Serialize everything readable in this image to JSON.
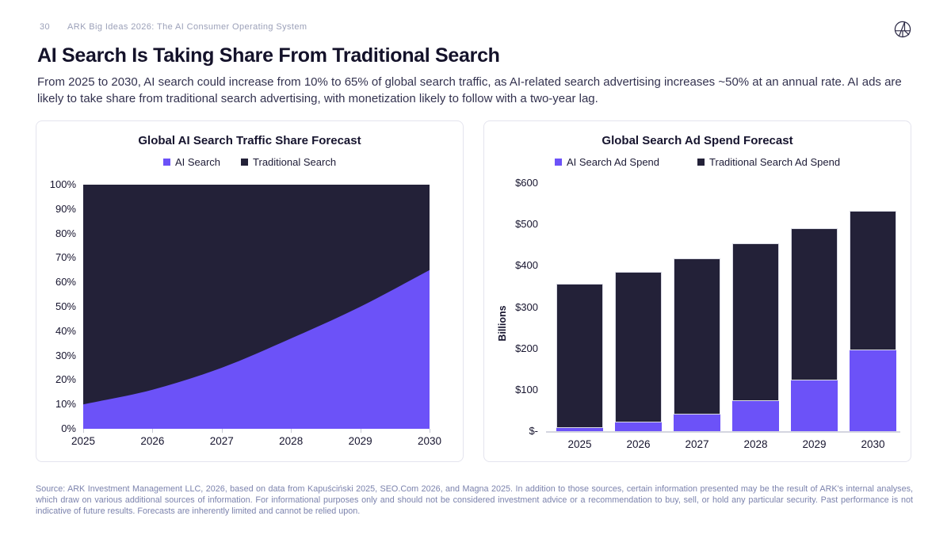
{
  "page": {
    "number": "30",
    "header": "ARK Big Ideas 2026: The AI Consumer Operating System",
    "title": "AI Search Is Taking Share From Traditional Search",
    "subtitle": "From 2025 to 2030, AI search could increase from 10% to 65% of global search traffic, as AI-related search advertising increases ~50% at an annual rate. AI ads are likely to take share from traditional search advertising, with monetization likely to follow with a two-year lag.",
    "footer": "Source: ARK Investment Management LLC, 2026, based on data from Kapuściński 2025, SEO.Com 2026, and Magna 2025. In addition to those sources, certain information presented may be the result of ARK's internal analyses, which draw on various additional sources of information. For informational purposes only and should not be considered investment advice or a recommendation to buy, sell, or hold any particular security. Past performance is not indicative of future results. Forecasts are inherently limited and cannot be relied upon.",
    "logo_name": "ark-logo"
  },
  "colors": {
    "ai": "#6C52F8",
    "traditional": "#232138",
    "title_text": "#14122a",
    "muted_text": "#7c83ad",
    "header_text": "#9ba0b8",
    "card_border": "#e4e4ee",
    "axis_line": "#d4d5e0"
  },
  "chart_data": [
    {
      "type": "area",
      "title": "Global AI Search Traffic Share Forecast",
      "categories": [
        "2025",
        "2026",
        "2027",
        "2028",
        "2029",
        "2030"
      ],
      "series": [
        {
          "name": "AI Search",
          "values": [
            10,
            16,
            25,
            37,
            50,
            65
          ],
          "color": "#6C52F8"
        },
        {
          "name": "Traditional Search",
          "values": [
            90,
            84,
            75,
            63,
            50,
            35
          ],
          "color": "#232138"
        }
      ],
      "stacked": true,
      "percent": true,
      "yticks": [
        "100%",
        "90%",
        "80%",
        "70%",
        "60%",
        "50%",
        "40%",
        "30%",
        "20%",
        "10%",
        "0%"
      ],
      "ylim": [
        0,
        100
      ],
      "xlabel": "",
      "ylabel": "",
      "legend_position": "top",
      "grid": false
    },
    {
      "type": "bar",
      "title": "Global Search Ad Spend Forecast",
      "categories": [
        "2025",
        "2026",
        "2027",
        "2028",
        "2029",
        "2030"
      ],
      "series": [
        {
          "name": "AI Search Ad Spend",
          "values": [
            7,
            21,
            41,
            72,
            123,
            196
          ],
          "color": "#6C52F8"
        },
        {
          "name": "Traditional Search Ad Spend",
          "values": [
            350,
            365,
            377,
            383,
            368,
            337
          ],
          "color": "#232138"
        }
      ],
      "stacked": true,
      "totals": [
        357,
        386,
        418,
        455,
        491,
        533
      ],
      "yticks": [
        "$600",
        "$500",
        "$400",
        "$300",
        "$200",
        "$100",
        "$-"
      ],
      "ylim": [
        0,
        600
      ],
      "xlabel": "",
      "ylabel": "Billions",
      "legend_position": "top",
      "grid": false
    }
  ]
}
